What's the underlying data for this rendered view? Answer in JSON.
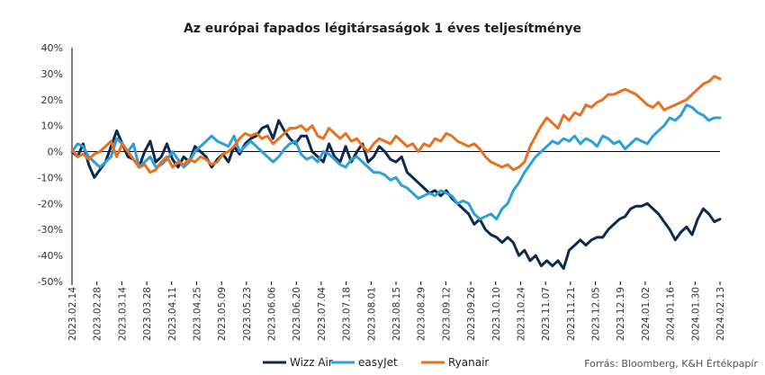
{
  "chart_data": {
    "type": "line",
    "title": "Az európai fapados légitársaságok 1 éves teljesítménye",
    "source": "Forrás: Bloomberg, K&H Értékpapír",
    "ylim": [
      -50,
      40
    ],
    "yticks": [
      "40%",
      "30%",
      "20%",
      "10%",
      "0%",
      "-10%",
      "-20%",
      "-30%",
      "-40%",
      "-50%"
    ],
    "x_tick_labels": [
      "2023.02.14",
      "2023.02.28",
      "2023.03.14",
      "2023.03.28",
      "2023.04.11",
      "2023.04.25",
      "2023.05.09",
      "2023.05.23",
      "2023.06.06",
      "2023.06.20",
      "2023.07.04",
      "2023.07.18",
      "2023.08.01",
      "2023.08.15",
      "2023.08.29",
      "2023.09.12",
      "2023.09.26",
      "2023.10.10",
      "2023.10.24",
      "2023.11.07",
      "2023.11.21",
      "2023.12.05",
      "2023.12.19",
      "2024.01.02",
      "2024.01.16",
      "2024.01.30",
      "2024.02.13"
    ],
    "grid": false,
    "zero_line": true,
    "legend_position": "bottom",
    "series": [
      {
        "name": "Wizz Air",
        "color": "#0d2a4e",
        "values": [
          0,
          -2,
          3,
          -5,
          -10,
          -7,
          -4,
          2,
          8,
          3,
          -2,
          -3,
          -6,
          0,
          4,
          -4,
          -2,
          3,
          -3,
          -6,
          -2,
          -4,
          2,
          0,
          -2,
          -6,
          -3,
          -1,
          -4,
          2,
          -1,
          3,
          5,
          6,
          9,
          10,
          5,
          12,
          8,
          5,
          3,
          6,
          6,
          0,
          -2,
          -4,
          3,
          -2,
          -4,
          2,
          -4,
          0,
          3,
          -4,
          -2,
          2,
          0,
          -3,
          -4,
          -2,
          -8,
          -10,
          -12,
          -14,
          -16,
          -15,
          -17,
          -15,
          -18,
          -20,
          -22,
          -24,
          -28,
          -26,
          -30,
          -32,
          -33,
          -35,
          -33,
          -35,
          -40,
          -38,
          -42,
          -40,
          -44,
          -42,
          -44,
          -42,
          -45,
          -38,
          -36,
          -34,
          -36,
          -34,
          -33,
          -33,
          -30,
          -28,
          -26,
          -25,
          -22,
          -21,
          -21,
          -20,
          -22,
          -24,
          -27,
          -30,
          -34,
          -31,
          -29,
          -32,
          -26,
          -22,
          -24,
          -27,
          -26
        ]
      },
      {
        "name": "easyJet",
        "color": "#2e9fd8",
        "values": [
          0,
          3,
          2,
          -2,
          -4,
          -6,
          -4,
          -2,
          5,
          3,
          0,
          3,
          -6,
          -4,
          -2,
          -6,
          -5,
          -3,
          0,
          -3,
          -6,
          -4,
          0,
          2,
          4,
          6,
          4,
          3,
          2,
          6,
          0,
          2,
          4,
          2,
          0,
          -2,
          -4,
          -2,
          1,
          3,
          4,
          -1,
          -3,
          -2,
          -4,
          0,
          -1,
          -3,
          -5,
          -6,
          -3,
          -2,
          -4,
          -6,
          -8,
          -8,
          -9,
          -11,
          -10,
          -13,
          -14,
          -16,
          -18,
          -17,
          -16,
          -17,
          -15,
          -16,
          -17,
          -20,
          -19,
          -20,
          -24,
          -26,
          -25,
          -24,
          -26,
          -22,
          -20,
          -15,
          -12,
          -8,
          -5,
          -2,
          0,
          2,
          4,
          3,
          5,
          4,
          6,
          3,
          5,
          4,
          2,
          6,
          5,
          3,
          4,
          1,
          3,
          5,
          4,
          3,
          6,
          8,
          10,
          13,
          12,
          14,
          18,
          17,
          15,
          14,
          12,
          13,
          13
        ]
      },
      {
        "name": "Ryanair",
        "color": "#e8701e",
        "values": [
          1,
          -2,
          -1,
          -3,
          -1,
          0,
          2,
          4,
          -2,
          3,
          0,
          -3,
          -6,
          -5,
          -8,
          -7,
          -4,
          -2,
          -6,
          -4,
          -5,
          -3,
          -4,
          -2,
          -3,
          -5,
          -4,
          -1,
          0,
          2,
          5,
          7,
          6,
          7,
          5,
          6,
          3,
          5,
          7,
          9,
          9,
          10,
          8,
          10,
          6,
          5,
          9,
          7,
          5,
          7,
          4,
          5,
          2,
          0,
          3,
          5,
          4,
          3,
          6,
          4,
          2,
          3,
          0,
          3,
          2,
          5,
          4,
          7,
          6,
          4,
          3,
          2,
          3,
          1,
          -2,
          -4,
          -5,
          -6,
          -5,
          -7,
          -6,
          -4,
          2,
          6,
          10,
          13,
          11,
          9,
          14,
          12,
          15,
          14,
          18,
          17,
          19,
          20,
          22,
          22,
          23,
          24,
          23,
          22,
          20,
          18,
          17,
          19,
          16,
          17,
          18,
          19,
          20,
          22,
          24,
          26,
          27,
          29,
          28
        ]
      }
    ]
  }
}
